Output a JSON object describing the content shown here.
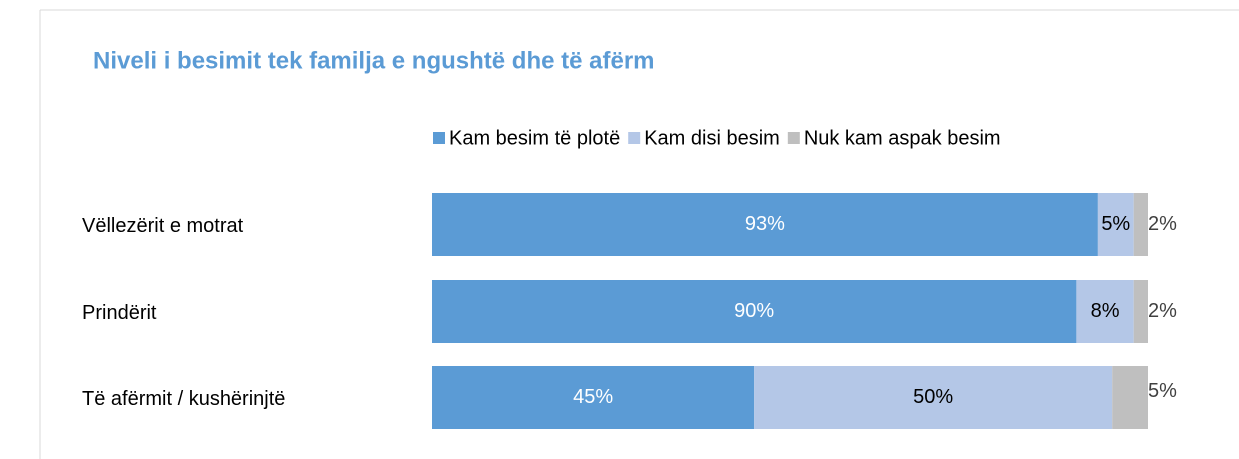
{
  "chart_data": {
    "type": "stacked-bar-horizontal",
    "title": "Niveli i besimit tek familja e ngushtë dhe të afërm",
    "categories": [
      "Vëllezërit e motrat",
      "Prindërit",
      "Të afërmit / kushërinjtë"
    ],
    "series": [
      {
        "name": "Kam besim të plotë",
        "color": "#5b9bd5",
        "values": [
          93,
          90,
          45
        ],
        "value_labels": [
          "93%",
          "90%",
          "45%"
        ]
      },
      {
        "name": "Kam disi besim",
        "color": "#b4c7e7",
        "values": [
          5,
          8,
          50
        ],
        "value_labels": [
          "5%",
          "8%",
          "50%"
        ]
      },
      {
        "name": "Nuk kam aspak besim",
        "color": "#bfbfbf",
        "values": [
          2,
          2,
          5
        ],
        "value_labels": [
          "2%",
          "2%",
          "5%"
        ]
      }
    ],
    "xlim": [
      0,
      100
    ],
    "legend": "top"
  }
}
